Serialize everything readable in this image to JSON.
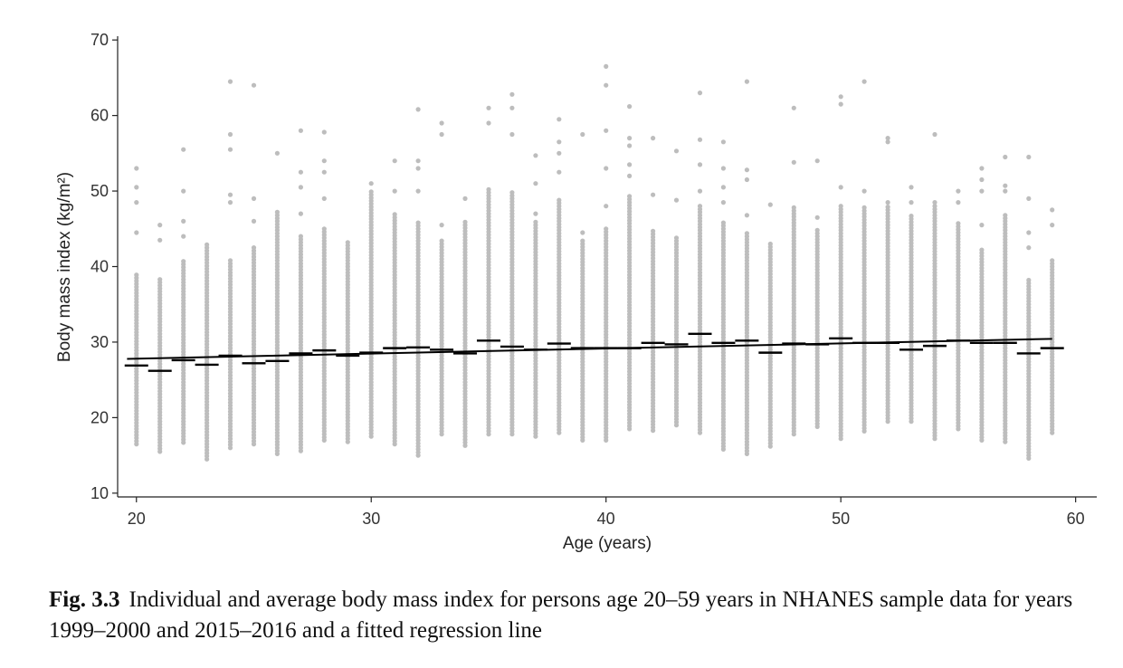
{
  "chart_data": {
    "type": "scatter",
    "xlabel": "Age (years)",
    "ylabel": "Body mass index (kg/m²)",
    "xlim": [
      19.2,
      60.9
    ],
    "ylim": [
      9.5,
      70.5
    ],
    "xticks": [
      20,
      30,
      40,
      50,
      60
    ],
    "yticks": [
      10,
      20,
      30,
      40,
      50,
      60,
      70
    ],
    "grid": false,
    "legend": "none",
    "point_color": "#bdbdbd",
    "mean_color": "#000000",
    "ages": [
      20,
      21,
      22,
      23,
      24,
      25,
      26,
      27,
      28,
      29,
      30,
      31,
      32,
      33,
      34,
      35,
      36,
      37,
      38,
      39,
      40,
      41,
      42,
      43,
      44,
      45,
      46,
      47,
      48,
      49,
      50,
      51,
      52,
      53,
      54,
      55,
      56,
      57,
      58,
      59
    ],
    "individual_ranges": [
      [
        16.5,
        39
      ],
      [
        15.5,
        38.5
      ],
      [
        16.7,
        41
      ],
      [
        14.5,
        43
      ],
      [
        16,
        41
      ],
      [
        16.5,
        42.5
      ],
      [
        15.2,
        47.5
      ],
      [
        15.6,
        44
      ],
      [
        17,
        45
      ],
      [
        16.8,
        43.5
      ],
      [
        17.5,
        50
      ],
      [
        16.5,
        47
      ],
      [
        15,
        46
      ],
      [
        17.8,
        43.5
      ],
      [
        16.3,
        46
      ],
      [
        17.8,
        50.5
      ],
      [
        17.8,
        49.8
      ],
      [
        17.5,
        46
      ],
      [
        18,
        49
      ],
      [
        17,
        43.5
      ],
      [
        17,
        45
      ],
      [
        18.5,
        49.5
      ],
      [
        18.3,
        45
      ],
      [
        19,
        44
      ],
      [
        18,
        48
      ],
      [
        15.8,
        46
      ],
      [
        15.2,
        44.5
      ],
      [
        16.2,
        43
      ],
      [
        17.8,
        48
      ],
      [
        18.8,
        45
      ],
      [
        17.2,
        48
      ],
      [
        18.2,
        48
      ],
      [
        19.5,
        48
      ],
      [
        19.5,
        47
      ],
      [
        17.2,
        48
      ],
      [
        18.5,
        46
      ],
      [
        17,
        42.5
      ],
      [
        16.8,
        47
      ],
      [
        14.6,
        38.5
      ],
      [
        18,
        41
      ]
    ],
    "outliers": [
      {
        "x": 20,
        "y": [
          44.5,
          48.5,
          50.5,
          53
        ]
      },
      {
        "x": 21,
        "y": [
          43.5,
          45.5
        ]
      },
      {
        "x": 22,
        "y": [
          44,
          46,
          50,
          55.5
        ]
      },
      {
        "x": 24,
        "y": [
          48.5,
          49.5,
          55.5,
          57.5,
          64.5
        ]
      },
      {
        "x": 25,
        "y": [
          46,
          49,
          64
        ]
      },
      {
        "x": 26,
        "y": [
          55
        ]
      },
      {
        "x": 27,
        "y": [
          47,
          50.5,
          52.5,
          58
        ]
      },
      {
        "x": 28,
        "y": [
          49,
          52.5,
          54,
          57.8
        ]
      },
      {
        "x": 30,
        "y": [
          51
        ]
      },
      {
        "x": 31,
        "y": [
          50,
          54
        ]
      },
      {
        "x": 32,
        "y": [
          50,
          53,
          54,
          60.8
        ]
      },
      {
        "x": 33,
        "y": [
          45.5,
          57.5,
          59
        ]
      },
      {
        "x": 34,
        "y": [
          49
        ]
      },
      {
        "x": 35,
        "y": [
          59,
          61
        ]
      },
      {
        "x": 36,
        "y": [
          57.5,
          61,
          62.8
        ]
      },
      {
        "x": 37,
        "y": [
          47,
          51,
          54.7
        ]
      },
      {
        "x": 38,
        "y": [
          52.5,
          55,
          56.5,
          59.5
        ]
      },
      {
        "x": 39,
        "y": [
          44.5,
          57.5
        ]
      },
      {
        "x": 40,
        "y": [
          48,
          53,
          58,
          64,
          66.5
        ]
      },
      {
        "x": 41,
        "y": [
          52,
          53.5,
          56,
          57,
          61.2
        ]
      },
      {
        "x": 42,
        "y": [
          49.5,
          57
        ]
      },
      {
        "x": 43,
        "y": [
          48.8,
          55.3
        ]
      },
      {
        "x": 44,
        "y": [
          50,
          53.5,
          56.8,
          63
        ]
      },
      {
        "x": 45,
        "y": [
          48.5,
          50.5,
          53,
          56.5
        ]
      },
      {
        "x": 46,
        "y": [
          46.8,
          51.5,
          52.8,
          64.5
        ]
      },
      {
        "x": 47,
        "y": [
          48.2
        ]
      },
      {
        "x": 48,
        "y": [
          53.8,
          61
        ]
      },
      {
        "x": 49,
        "y": [
          46.5,
          54
        ]
      },
      {
        "x": 50,
        "y": [
          50.5,
          61.5,
          62.5
        ]
      },
      {
        "x": 51,
        "y": [
          50,
          64.5
        ]
      },
      {
        "x": 52,
        "y": [
          48.5,
          56.5,
          57
        ]
      },
      {
        "x": 53,
        "y": [
          48.5,
          50.5
        ]
      },
      {
        "x": 54,
        "y": [
          48.5,
          57.5
        ]
      },
      {
        "x": 55,
        "y": [
          48.5,
          50
        ]
      },
      {
        "x": 56,
        "y": [
          45.5,
          50,
          51.5,
          53
        ]
      },
      {
        "x": 57,
        "y": [
          50,
          50.7,
          54.5
        ]
      },
      {
        "x": 58,
        "y": [
          42.5,
          44.5,
          49,
          54.5
        ]
      },
      {
        "x": 59,
        "y": [
          45.5,
          47.5
        ]
      }
    ],
    "means": [
      26.9,
      26.2,
      27.6,
      27.0,
      28.2,
      27.2,
      27.5,
      28.5,
      28.9,
      28.2,
      28.6,
      29.2,
      29.3,
      29.0,
      28.5,
      30.2,
      29.4,
      29.0,
      29.8,
      29.2,
      29.2,
      29.2,
      29.9,
      29.7,
      31.1,
      29.9,
      30.2,
      28.6,
      29.8,
      29.7,
      30.5,
      29.9,
      29.9,
      29.0,
      29.5,
      30.2,
      29.9,
      29.9,
      28.5,
      29.2
    ],
    "regression": {
      "intercept": 27.8,
      "slope": 0.0675
    }
  },
  "caption": {
    "label": "Fig. 3.3",
    "text": "Individual and average body mass index for persons age 20–59 years in NHANES sample data for years 1999–2000 and 2015–2016 and a fitted regression line"
  }
}
